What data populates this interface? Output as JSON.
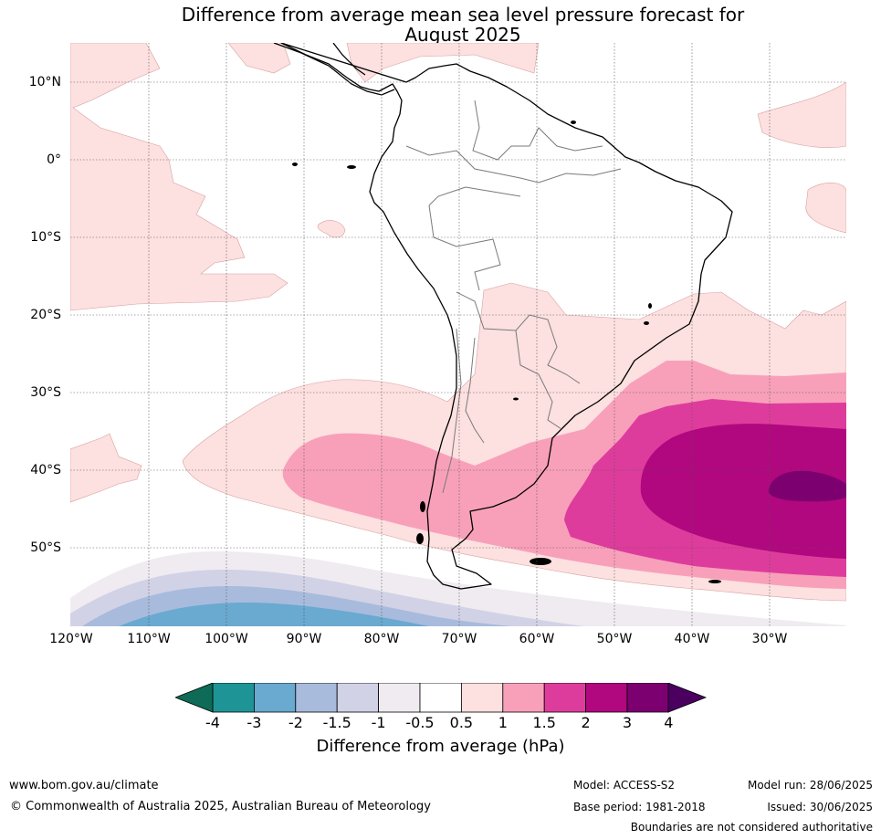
{
  "title_line1": "Difference from average mean sea level pressure forecast for",
  "title_line2": "August 2025",
  "latitude_labels": [
    "10°N",
    "0°",
    "10°S",
    "20°S",
    "30°S",
    "40°S",
    "50°S"
  ],
  "longitude_labels": [
    "120°W",
    "110°W",
    "100°W",
    "90°W",
    "80°W",
    "70°W",
    "60°W",
    "50°W",
    "40°W",
    "30°W"
  ],
  "colorbar": {
    "ticks": [
      "-4",
      "-3",
      "-2",
      "-1.5",
      "-1",
      "-0.5",
      "0.5",
      "1",
      "1.5",
      "2",
      "3",
      "4"
    ],
    "colors": [
      "#1f9497",
      "#6aa9d0",
      "#a8bbdc",
      "#d2d2e6",
      "#f0ebf1",
      "#ffffff",
      "#fde0e0",
      "#f8a0ba",
      "#de3c9c",
      "#b1077f",
      "#7c006f"
    ],
    "under_color": "#0d6b57",
    "over_color": "#4b0060",
    "label": "Difference from average (hPa)"
  },
  "footer": {
    "url": "www.bom.gov.au/climate",
    "copyright": "© Commonwealth of Australia 2025, Australian Bureau of Meteorology",
    "model": "Model: ACCESS-S2",
    "base_period": "Base period: 1981-2018",
    "model_run": "Model run: 28/06/2025",
    "issued": "Issued: 30/06/2025",
    "disclaimer": "Boundaries are not considered authoritative"
  }
}
